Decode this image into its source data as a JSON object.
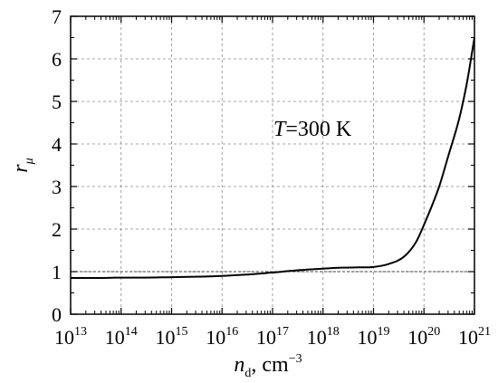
{
  "chart_data": {
    "type": "line",
    "title": "",
    "xscale": "log",
    "xlim": [
      10000000000000.0,
      1e+21
    ],
    "ylim": [
      0,
      7
    ],
    "grid": true,
    "x_ticks": [
      {
        "base": "10",
        "exp": "13"
      },
      {
        "base": "10",
        "exp": "14"
      },
      {
        "base": "10",
        "exp": "15"
      },
      {
        "base": "10",
        "exp": "16"
      },
      {
        "base": "10",
        "exp": "17"
      },
      {
        "base": "10",
        "exp": "18"
      },
      {
        "base": "10",
        "exp": "19"
      },
      {
        "base": "10",
        "exp": "20"
      },
      {
        "base": "10",
        "exp": "21"
      }
    ],
    "y_ticks": [
      "0",
      "1",
      "2",
      "3",
      "4",
      "5",
      "6",
      "7"
    ],
    "xlabel": {
      "main": "n",
      "sub": "d",
      "rest": ", cm",
      "sup": "−3"
    },
    "ylabel": {
      "main": "r",
      "sub": "μ"
    },
    "annotation": {
      "italic": "T",
      "rest": "=300 K"
    },
    "series": [
      {
        "x": [
          10000000000000.0,
          30000000000000.0,
          100000000000000.0,
          300000000000000.0,
          1000000000000000.0,
          3000000000000000.0,
          1e+16,
          3e+16,
          1e+17,
          3e+17,
          1e+18,
          2e+18,
          5e+18,
          1e+19,
          2e+19,
          4e+19,
          7e+19,
          1e+20,
          2e+20,
          3e+20,
          5e+20,
          7e+20,
          1e+21
        ],
        "y": [
          0.85,
          0.85,
          0.86,
          0.86,
          0.87,
          0.88,
          0.9,
          0.93,
          0.98,
          1.03,
          1.07,
          1.09,
          1.1,
          1.11,
          1.18,
          1.35,
          1.7,
          2.1,
          3.0,
          3.7,
          4.6,
          5.4,
          6.5
        ]
      }
    ],
    "reference_lines": [
      {
        "y": 1
      }
    ]
  }
}
